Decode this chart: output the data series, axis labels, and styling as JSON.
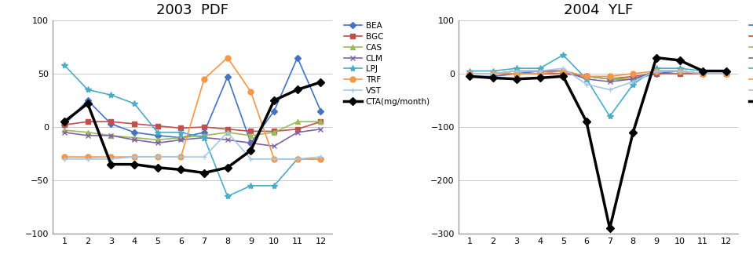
{
  "months": [
    1,
    2,
    3,
    4,
    5,
    6,
    7,
    8,
    9,
    10,
    11,
    12
  ],
  "pdf": {
    "title": "2003  PDF",
    "ylim": [
      -100,
      100
    ],
    "yticks": [
      -100,
      -50,
      0,
      50,
      100
    ],
    "BEA": [
      2,
      25,
      3,
      -5,
      -8,
      -10,
      -5,
      47,
      -15,
      15,
      65,
      15
    ],
    "BGC": [
      2,
      5,
      5,
      3,
      1,
      -1,
      0,
      -2,
      -4,
      -4,
      -2,
      5
    ],
    "CAS": [
      -3,
      -5,
      -8,
      -10,
      -12,
      -10,
      -8,
      -5,
      -8,
      -5,
      5,
      5
    ],
    "CLM": [
      -5,
      -8,
      -8,
      -12,
      -15,
      -12,
      -10,
      -12,
      -15,
      -18,
      -5,
      -2
    ],
    "LPJ": [
      58,
      35,
      30,
      22,
      -5,
      -5,
      -10,
      -65,
      -55,
      -55,
      -30,
      -30
    ],
    "TRF": [
      -28,
      -28,
      -28,
      -28,
      -28,
      -28,
      45,
      65,
      33,
      -30,
      -30,
      -30
    ],
    "VST": [
      -30,
      -30,
      -30,
      -28,
      -28,
      -28,
      -28,
      -5,
      -30,
      -30,
      -30,
      -28
    ],
    "CTA": [
      5,
      22,
      -35,
      -35,
      -38,
      -40,
      -43,
      -38,
      -22,
      25,
      35,
      42
    ]
  },
  "ylf": {
    "title": "2004  YLF",
    "ylim": [
      -300,
      100
    ],
    "yticks": [
      -300,
      -200,
      -100,
      0,
      100
    ],
    "BEA": [
      -5,
      -5,
      0,
      5,
      5,
      -5,
      -10,
      -10,
      0,
      5,
      0,
      0
    ],
    "BGC": [
      0,
      0,
      0,
      0,
      0,
      -5,
      -10,
      -5,
      0,
      0,
      0,
      0
    ],
    "CAS": [
      0,
      0,
      5,
      5,
      5,
      -5,
      -10,
      -10,
      5,
      5,
      0,
      0
    ],
    "CLM": [
      0,
      0,
      5,
      5,
      5,
      -10,
      -15,
      -10,
      5,
      5,
      0,
      0
    ],
    "LPJ": [
      5,
      5,
      10,
      10,
      35,
      -10,
      -80,
      -20,
      10,
      10,
      5,
      5
    ],
    "TRF": [
      0,
      0,
      0,
      0,
      5,
      -5,
      -5,
      0,
      5,
      5,
      0,
      0
    ],
    "VST": [
      0,
      0,
      5,
      5,
      10,
      -20,
      -30,
      -15,
      5,
      5,
      0,
      0
    ],
    "CTA": [
      -5,
      -8,
      -10,
      -8,
      -5,
      -90,
      -290,
      -110,
      30,
      25,
      5,
      5
    ]
  },
  "series": [
    {
      "key": "BEA",
      "color": "#4472C4",
      "marker": "D",
      "lw": 1.2,
      "ms": 4
    },
    {
      "key": "BGC",
      "color": "#C0504D",
      "marker": "s",
      "lw": 1.2,
      "ms": 4
    },
    {
      "key": "CAS",
      "color": "#9BBB59",
      "marker": "^",
      "lw": 1.2,
      "ms": 4
    },
    {
      "key": "CLM",
      "color": "#8064A2",
      "marker": "x",
      "lw": 1.2,
      "ms": 4
    },
    {
      "key": "LPJ",
      "color": "#4BACC6",
      "marker": "*",
      "lw": 1.2,
      "ms": 6
    },
    {
      "key": "TRF",
      "color": "#F79646",
      "marker": "o",
      "lw": 1.2,
      "ms": 5
    },
    {
      "key": "VST",
      "color": "#A5C8E4",
      "marker": "+",
      "lw": 1.2,
      "ms": 5
    },
    {
      "key": "CTA",
      "color": "#000000",
      "marker": "D",
      "lw": 2.5,
      "ms": 5
    }
  ],
  "legend_labels": [
    "BEA",
    "BGC",
    "CAS",
    "CLM",
    "LPJ",
    "TRF",
    "VST",
    "CTA(mg/month)"
  ]
}
